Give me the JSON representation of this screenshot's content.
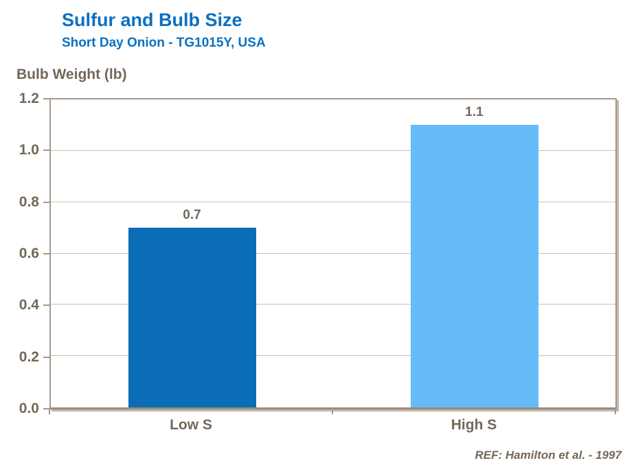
{
  "chart_data": {
    "type": "bar",
    "title": "Sulfur and Bulb Size",
    "subtitle": "Short Day Onion - TG1015Y, USA",
    "ylabel": "Bulb Weight (lb)",
    "xlabel": "",
    "categories": [
      "Low S",
      "High S"
    ],
    "values": [
      0.7,
      1.1
    ],
    "value_labels": [
      "0.7",
      "1.1"
    ],
    "bar_colors": [
      "#0a6db5",
      "#66bbf8"
    ],
    "ylim": [
      0,
      1.2
    ],
    "yticks": [
      1.2,
      1.0,
      0.8,
      0.6,
      0.4,
      0.2,
      0.0
    ],
    "grid": true,
    "legend": false,
    "reference": "REF: Hamilton et al. - 1997"
  },
  "colors": {
    "title_blue": "#0a70c2",
    "text_brown": "#746757",
    "gridline": "#ccc1b5",
    "axis": "#a5988b",
    "background": "#ffffff"
  }
}
